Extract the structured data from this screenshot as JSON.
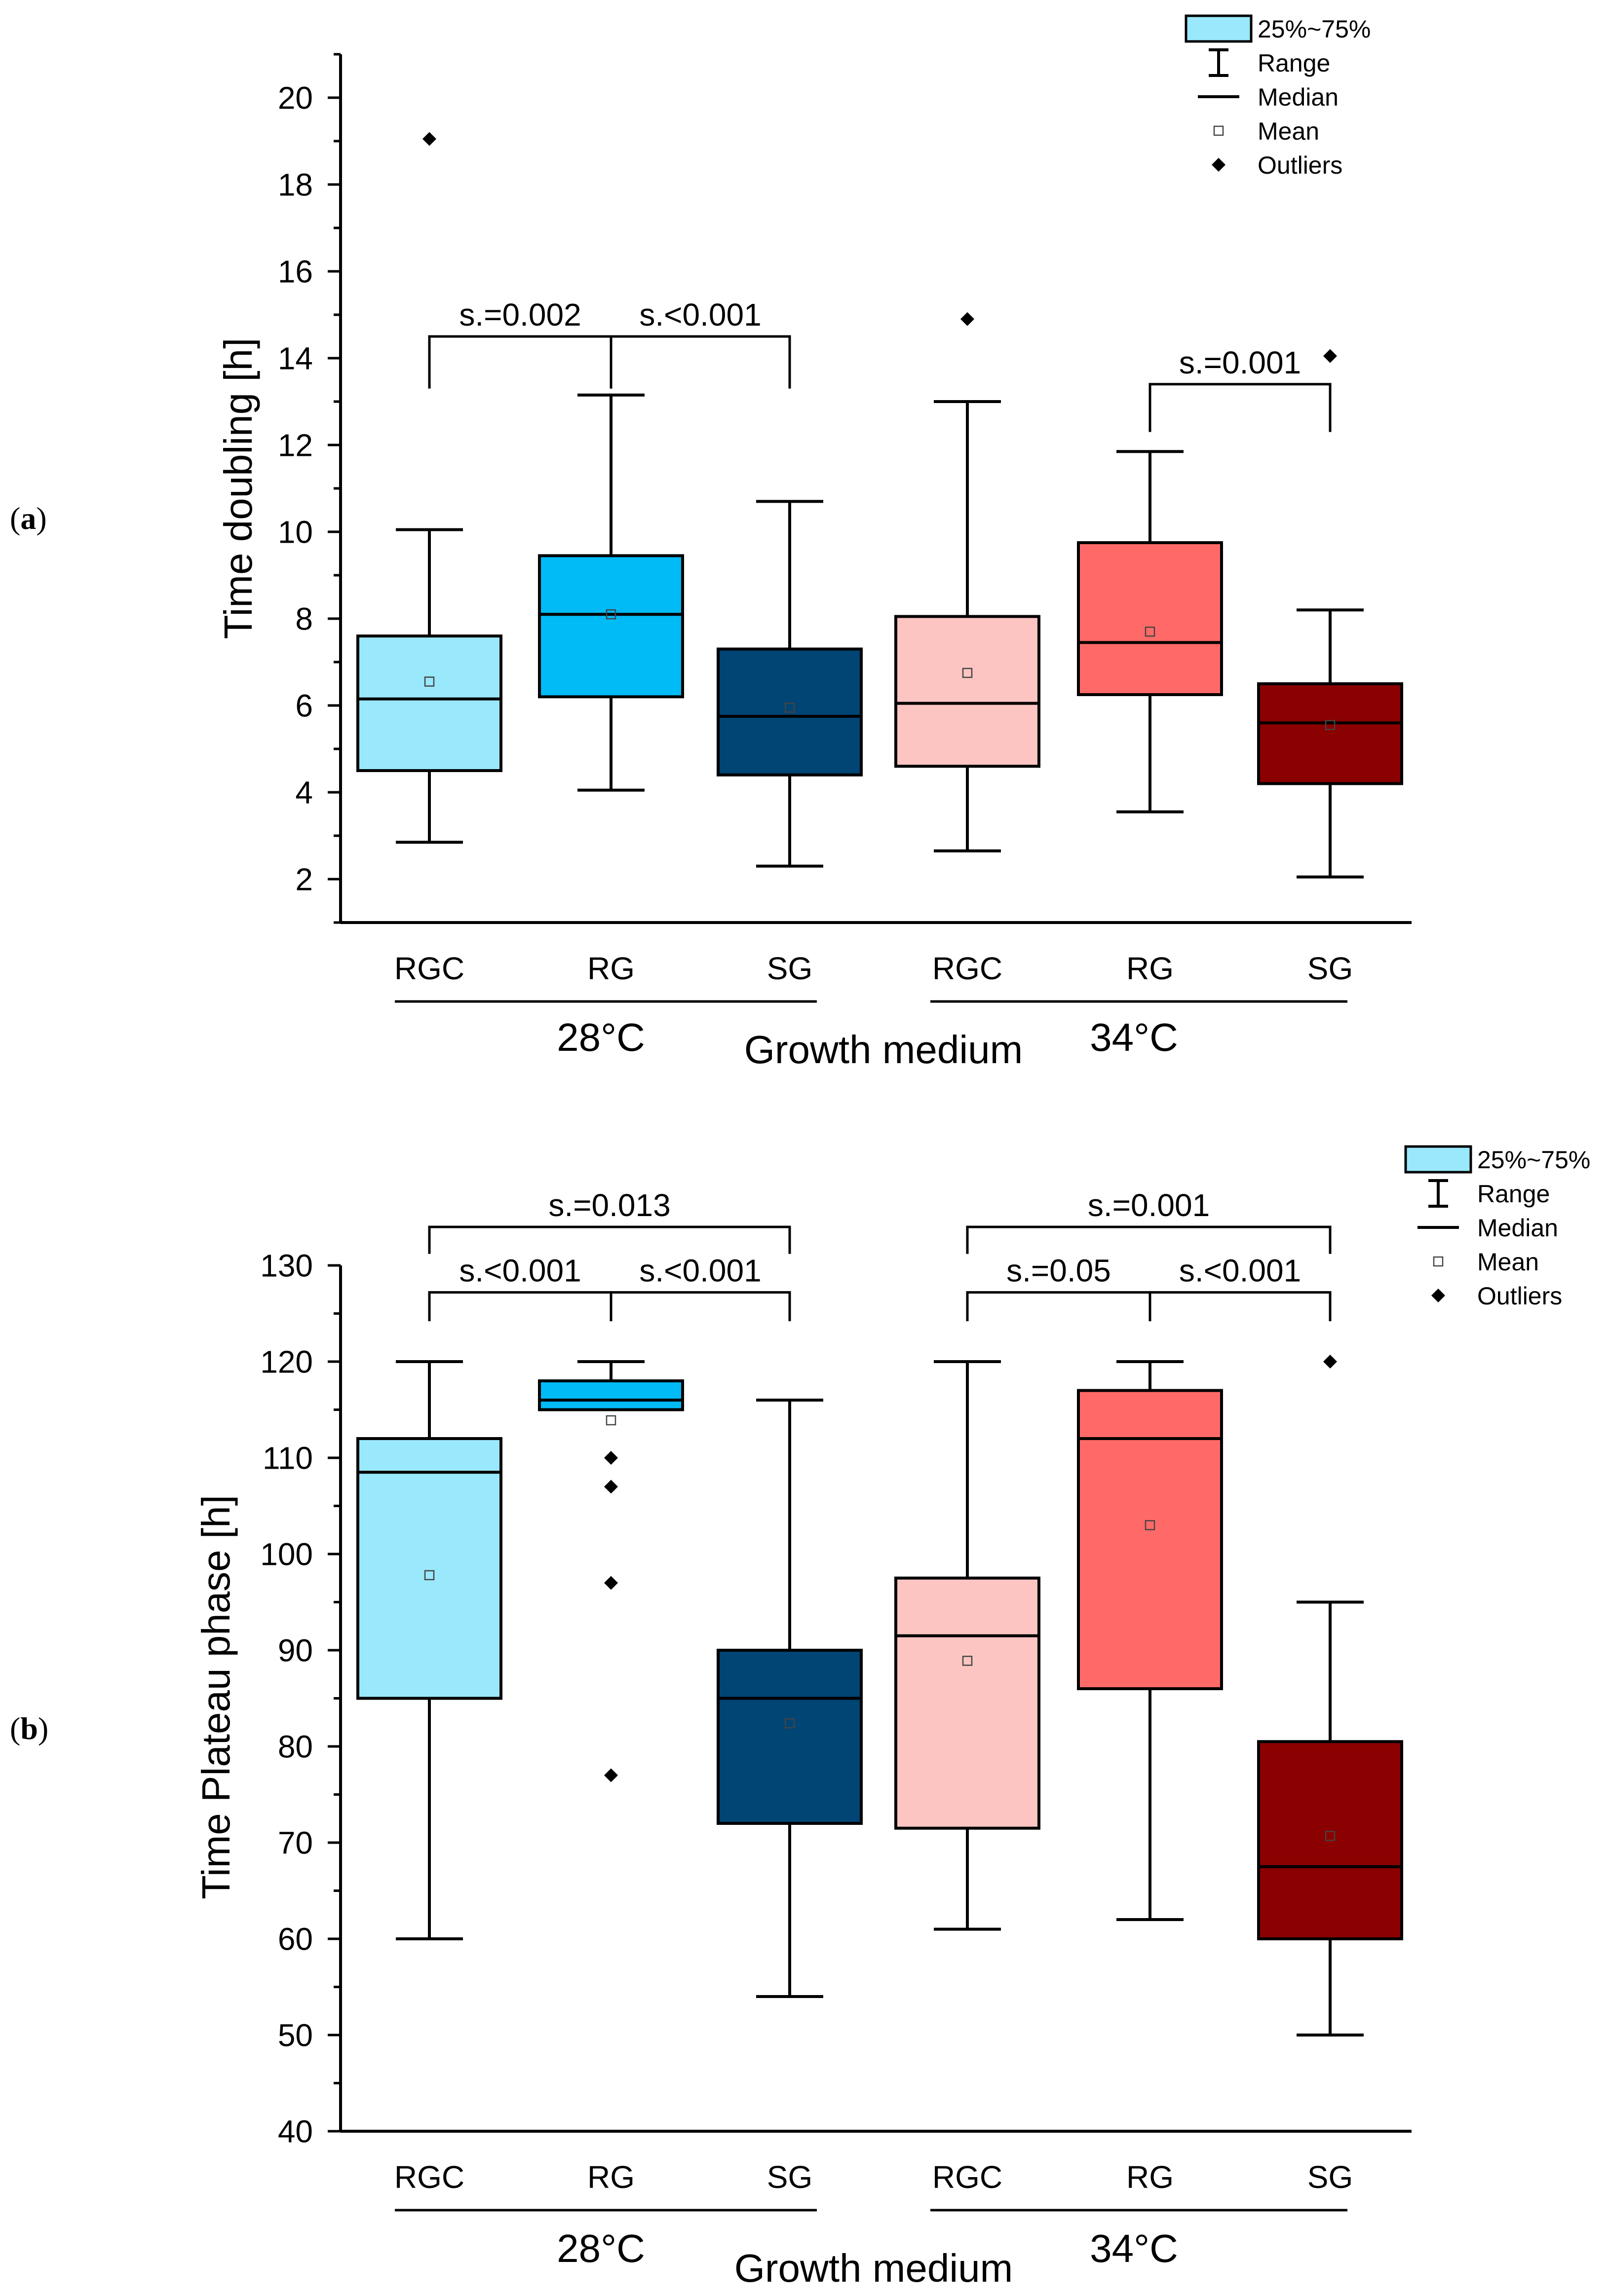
{
  "figure": {
    "panels": [
      {
        "label": "(a)",
        "label_open": "(",
        "label_letter": "a",
        "label_close": ")"
      },
      {
        "label": "(b)",
        "label_open": "(",
        "label_letter": "b",
        "label_close": ")"
      }
    ]
  },
  "chart_data": [
    {
      "type": "box",
      "panel": "a",
      "ylabel": "Time doubling [h]",
      "xlabel": "Growth medium",
      "ylim": [
        1,
        21
      ],
      "yticks": [
        2,
        4,
        6,
        8,
        10,
        12,
        14,
        16,
        18,
        20
      ],
      "categories": [
        "RGC",
        "RG",
        "SG",
        "RGC",
        "RG",
        "SG"
      ],
      "groups": [
        {
          "label": "28°C",
          "from": 0,
          "to": 2
        },
        {
          "label": "34°C",
          "from": 3,
          "to": 5
        }
      ],
      "legend": {
        "position": "top-right",
        "entries": [
          "25%~75%",
          "Range",
          "Median",
          "Mean",
          "Outliers"
        ]
      },
      "series": [
        {
          "name": "RGC",
          "group": "28°C",
          "color": "#9ae8fc",
          "min": 2.85,
          "q1": 4.5,
          "median": 6.15,
          "q3": 7.6,
          "max": 10.05,
          "mean": 6.55,
          "outliers": [
            19.05
          ]
        },
        {
          "name": "RG",
          "group": "28°C",
          "color": "#00bbf5",
          "min": 4.05,
          "q1": 6.2,
          "median": 8.1,
          "q3": 9.45,
          "max": 13.15,
          "mean": 8.1,
          "outliers": []
        },
        {
          "name": "SG",
          "group": "28°C",
          "color": "#004574",
          "min": 2.3,
          "q1": 4.4,
          "median": 5.75,
          "q3": 7.3,
          "max": 10.7,
          "mean": 5.95,
          "outliers": []
        },
        {
          "name": "RGC",
          "group": "34°C",
          "color": "#fcc5c2",
          "min": 2.65,
          "q1": 4.6,
          "median": 6.05,
          "q3": 8.05,
          "max": 13.0,
          "mean": 6.75,
          "outliers": [
            14.9
          ]
        },
        {
          "name": "RG",
          "group": "34°C",
          "color": "#ff6a68",
          "min": 3.55,
          "q1": 6.25,
          "median": 7.45,
          "q3": 9.75,
          "max": 11.85,
          "mean": 7.7,
          "outliers": []
        },
        {
          "name": "SG",
          "group": "34°C",
          "color": "#8b0000",
          "min": 2.05,
          "q1": 4.2,
          "median": 5.6,
          "q3": 6.5,
          "max": 8.2,
          "mean": 5.55,
          "outliers": [
            14.05
          ]
        }
      ],
      "annotations": [
        {
          "text": "s.=0.002",
          "from": 0,
          "to": 1,
          "y": 14.5,
          "tipBottom": 13.3
        },
        {
          "text": "s.<0.001",
          "from": 1,
          "to": 2,
          "y": 14.5,
          "tipBottom": 13.3
        },
        {
          "text": "s.=0.001",
          "from": 4,
          "to": 5,
          "y": 13.4,
          "tipBottom": 12.3
        }
      ]
    },
    {
      "type": "box",
      "panel": "b",
      "ylabel": "Time Plateau phase [h]",
      "xlabel": "Growth medium",
      "ylim": [
        40,
        130
      ],
      "yticks": [
        40,
        50,
        60,
        70,
        80,
        90,
        100,
        110,
        120,
        130
      ],
      "categories": [
        "RGC",
        "RG",
        "SG",
        "RGC",
        "RG",
        "SG"
      ],
      "groups": [
        {
          "label": "28°C",
          "from": 0,
          "to": 2
        },
        {
          "label": "34°C",
          "from": 3,
          "to": 5
        }
      ],
      "legend": {
        "position": "top-right",
        "entries": [
          "25%~75%",
          "Range",
          "Median",
          "Mean",
          "Outliers"
        ]
      },
      "series": [
        {
          "name": "RGC",
          "group": "28°C",
          "color": "#9ae8fc",
          "min": 60,
          "q1": 85,
          "median": 108.5,
          "q3": 112,
          "max": 120,
          "mean": 97.8,
          "outliers": []
        },
        {
          "name": "RG",
          "group": "28°C",
          "color": "#00bbf5",
          "min": 115,
          "q1": 115,
          "median": 116,
          "q3": 118,
          "max": 120,
          "mean": 113.9,
          "outliers": [
            110,
            107,
            97,
            77
          ]
        },
        {
          "name": "SG",
          "group": "28°C",
          "color": "#004574",
          "min": 54,
          "q1": 72,
          "median": 85,
          "q3": 90,
          "max": 116,
          "mean": 82.4,
          "outliers": []
        },
        {
          "name": "RGC",
          "group": "34°C",
          "color": "#fcc5c2",
          "min": 61,
          "q1": 71.5,
          "median": 91.5,
          "q3": 97.5,
          "max": 120,
          "mean": 88.9,
          "outliers": []
        },
        {
          "name": "RG",
          "group": "34°C",
          "color": "#ff6a68",
          "min": 62,
          "q1": 86,
          "median": 112,
          "q3": 117,
          "max": 120,
          "mean": 103,
          "outliers": []
        },
        {
          "name": "SG",
          "group": "34°C",
          "color": "#8b0000",
          "min": 50,
          "q1": 60,
          "median": 67.5,
          "q3": 80.5,
          "max": 95,
          "mean": 70.7,
          "outliers": [
            120
          ]
        }
      ],
      "annotations": [
        {
          "text": "s.<0.001",
          "from": 0,
          "to": 1,
          "y": 127.2,
          "tipBottom": 124.2
        },
        {
          "text": "s.<0.001",
          "from": 1,
          "to": 2,
          "y": 127.2,
          "tipBottom": 124.2
        },
        {
          "text": "s.=0.013",
          "from": 0,
          "to": 2,
          "y": 134,
          "tipBottom": 131.2
        },
        {
          "text": "s.=0.05",
          "from": 3,
          "to": 4,
          "y": 127.2,
          "tipBottom": 124.2
        },
        {
          "text": "s.<0.001",
          "from": 4,
          "to": 5,
          "y": 127.2,
          "tipBottom": 124.2
        },
        {
          "text": "s.=0.001",
          "from": 3,
          "to": 5,
          "y": 134,
          "tipBottom": 131.2
        }
      ]
    }
  ]
}
